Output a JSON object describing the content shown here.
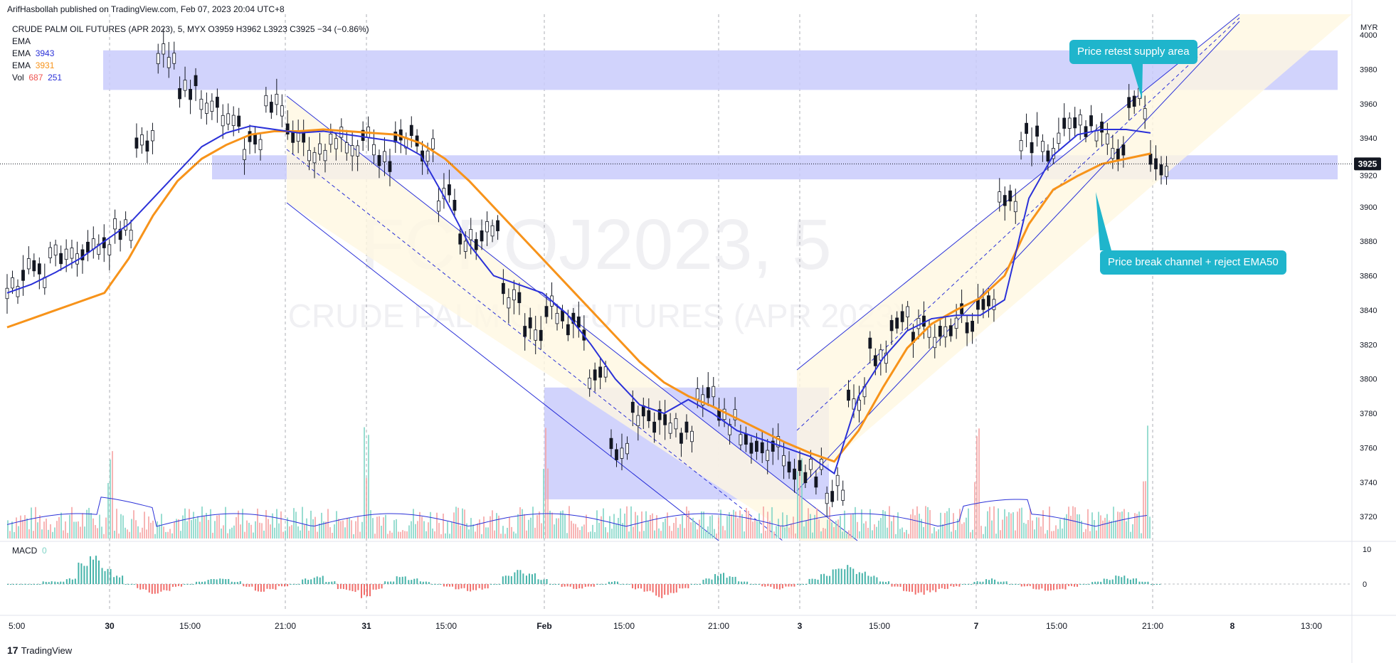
{
  "header": {
    "published": "ArifHasbollah published on TradingView.com, Feb 07, 2023 20:04 UTC+8"
  },
  "legend": {
    "symbol_line": "CRUDE PALM OIL FUTURES (APR 2023), 5, MYX  O3959  H3962  L3923  C3925  −34 (−0.86%)",
    "ema_label": "EMA",
    "ema1_label": "EMA",
    "ema1_value": "3943",
    "ema2_label": "EMA",
    "ema2_value": "3931",
    "vol_label": "Vol",
    "vol_value1": "687",
    "vol_value2": "251"
  },
  "watermark": {
    "symbol": "FCPOJ2023, 5",
    "name": "CRUDE PALM OIL FUTURES (APR 2023)"
  },
  "annotations": {
    "retest": "Price retest supply area",
    "break": "Price break channel + reject EMA50"
  },
  "macd": {
    "label": "MACD",
    "value": "0"
  },
  "price_axis": {
    "currency": "MYR",
    "last_price": "3925"
  },
  "footer": {
    "brand": "TradingView",
    "logo": "17"
  },
  "colors": {
    "ema_fast": "#2b31d8",
    "ema_slow": "#f7931a",
    "zone": "#c9cbfb",
    "channel_fill": "#fff8e1",
    "callout": "#1fb5cc",
    "vol_up": "#7fd4c6",
    "vol_down": "#f5a3a3",
    "macd_up": "#26a69a",
    "macd_down": "#ef5350"
  },
  "chart_data": {
    "type": "line",
    "title": "CRUDE PALM OIL FUTURES (APR 2023), 5, MYX",
    "x_ticks": [
      "5:00",
      "30",
      "15:00",
      "21:00",
      "31",
      "15:00",
      "Feb",
      "15:00",
      "21:00",
      "3",
      "15:00",
      "7",
      "15:00",
      "21:00",
      "8",
      "13:00"
    ],
    "y_ticks": [
      4000,
      3980,
      3960,
      3940,
      3920,
      3900,
      3880,
      3860,
      3840,
      3820,
      3800,
      3780,
      3760,
      3740,
      3720
    ],
    "ylim": [
      3706,
      4012
    ],
    "macd_ticks": [
      10,
      0
    ],
    "series": [
      {
        "name": "EMA",
        "values": [
          3830,
          3835,
          3840,
          3845,
          3850,
          3870,
          3895,
          3915,
          3928,
          3936,
          3942,
          3944,
          3944,
          3945,
          3944,
          3943,
          3942,
          3937,
          3928,
          3915,
          3900,
          3885,
          3870,
          3855,
          3840,
          3825,
          3810,
          3798,
          3790,
          3784,
          3777,
          3770,
          3763,
          3757,
          3752,
          3770,
          3795,
          3818,
          3832,
          3840,
          3847,
          3860,
          3890,
          3910,
          3918,
          3925,
          3928,
          3931
        ]
      },
      {
        "name": "EMA",
        "values": [
          3850,
          3855,
          3862,
          3870,
          3880,
          3890,
          3905,
          3920,
          3935,
          3943,
          3947,
          3945,
          3943,
          3944,
          3942,
          3940,
          3938,
          3930,
          3905,
          3878,
          3860,
          3855,
          3850,
          3838,
          3820,
          3800,
          3785,
          3780,
          3788,
          3780,
          3770,
          3765,
          3760,
          3755,
          3745,
          3790,
          3812,
          3828,
          3835,
          3837,
          3837,
          3846,
          3905,
          3930,
          3942,
          3945,
          3945,
          3943
        ]
      }
    ],
    "price_path": [
      3855,
      3862,
      3870,
      3875,
      3880,
      3885,
      3940,
      3988,
      3970,
      3960,
      3950,
      3935,
      3960,
      3945,
      3930,
      3940,
      3938,
      3928,
      3940,
      3935,
      3905,
      3880,
      3885,
      3850,
      3830,
      3840,
      3830,
      3800,
      3760,
      3780,
      3775,
      3770,
      3790,
      3775,
      3765,
      3760,
      3750,
      3745,
      3735,
      3790,
      3815,
      3835,
      3830,
      3825,
      3835,
      3840,
      3905,
      3940,
      3935,
      3945,
      3945,
      3935,
      3960,
      3925
    ],
    "zones": [
      {
        "from": 3968,
        "to": 3991
      },
      {
        "from": 3916,
        "to": 3930
      },
      {
        "from": 3730,
        "to": 3795
      }
    ],
    "macd_values": [
      0,
      0,
      0,
      1,
      1,
      2,
      8,
      10,
      6,
      3,
      0,
      -2,
      -4,
      -3,
      -1,
      0,
      1,
      2,
      2,
      1,
      -1,
      -3,
      -2,
      -1,
      0,
      2,
      3,
      1,
      -2,
      -3,
      -5,
      -2,
      1,
      3,
      2,
      1,
      0,
      -1,
      -2,
      -3,
      -2,
      0,
      3,
      5,
      4,
      2,
      0,
      -1,
      -2,
      -1,
      0,
      1,
      0,
      -2,
      -3,
      -5,
      -4,
      -2,
      0,
      2,
      4,
      3,
      1,
      0,
      -1,
      -2,
      -1,
      0,
      2,
      4,
      6,
      7,
      5,
      3,
      1,
      -1,
      -3,
      -4,
      -3,
      -2,
      -1,
      0,
      1,
      2,
      1,
      0,
      -1,
      -2,
      -3,
      -2,
      -1,
      0,
      1,
      2,
      3,
      2,
      1,
      0
    ]
  }
}
